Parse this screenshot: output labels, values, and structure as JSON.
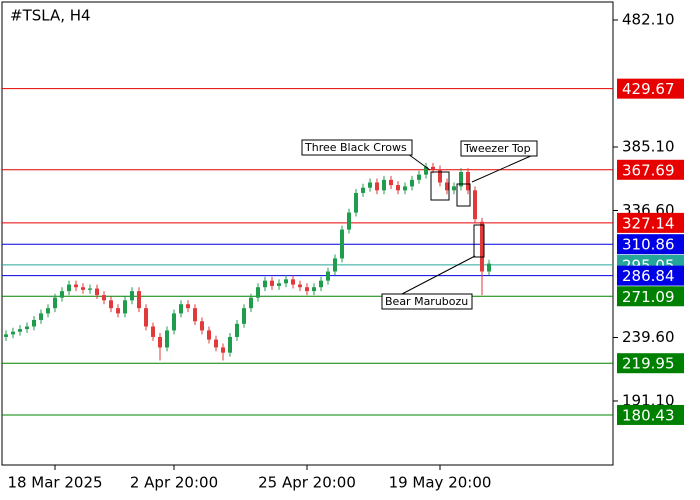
{
  "chart_data": {
    "type": "candlestick",
    "title": "#TSLA, H4",
    "ylim": [
      142.2,
      495.85
    ],
    "yticks": [
      {
        "value": 482.1,
        "label": "482.10"
      },
      {
        "value": 385.1,
        "label": "385.10"
      },
      {
        "value": 336.6,
        "label": "336.60"
      },
      {
        "value": 239.6,
        "label": "239.60"
      },
      {
        "value": 191.1,
        "label": "191.10"
      }
    ],
    "x_labels": [
      "18 Mar 2025",
      "2 Apr 20:00",
      "25 Apr 20:00",
      "19 May 20:00"
    ],
    "up_color": "#1f9d4c",
    "down_color": "#e23a3a",
    "open": [
      240,
      242,
      244,
      246,
      248,
      253,
      258,
      262,
      270,
      275,
      280,
      278,
      276,
      277,
      272,
      268,
      262,
      258,
      268,
      275,
      262,
      248,
      240,
      232,
      245,
      258,
      265,
      262,
      252,
      245,
      238,
      232,
      228,
      240,
      250,
      262,
      270,
      278,
      283,
      279,
      281,
      284,
      280,
      278,
      275,
      278,
      283,
      290,
      300,
      322,
      335,
      350,
      354,
      358,
      352,
      360,
      356,
      352,
      355,
      360,
      364,
      370,
      368,
      358,
      352,
      355,
      366,
      352,
      328,
      290
    ],
    "high": [
      245,
      247,
      249,
      251,
      256,
      261,
      265,
      273,
      278,
      283,
      283,
      281,
      280,
      280,
      275,
      271,
      265,
      271,
      278,
      278,
      265,
      251,
      243,
      248,
      261,
      268,
      268,
      265,
      255,
      248,
      241,
      235,
      243,
      253,
      265,
      273,
      281,
      286,
      286,
      284,
      287,
      287,
      283,
      281,
      281,
      286,
      293,
      303,
      325,
      338,
      353,
      357,
      361,
      361,
      363,
      363,
      359,
      358,
      363,
      367,
      373,
      373,
      371,
      361,
      358,
      369,
      369,
      355,
      331,
      299
    ],
    "low": [
      237,
      239,
      241,
      243,
      245,
      250,
      255,
      259,
      267,
      272,
      275,
      273,
      273,
      269,
      265,
      259,
      255,
      255,
      265,
      259,
      245,
      237,
      222,
      229,
      242,
      255,
      259,
      249,
      242,
      235,
      229,
      222,
      225,
      237,
      247,
      259,
      267,
      275,
      276,
      276,
      278,
      277,
      275,
      272,
      272,
      275,
      280,
      287,
      297,
      319,
      332,
      347,
      351,
      349,
      349,
      353,
      349,
      349,
      352,
      357,
      361,
      365,
      355,
      349,
      349,
      352,
      349,
      327,
      272,
      287
    ],
    "close": [
      242,
      244,
      246,
      248,
      253,
      258,
      262,
      270,
      275,
      280,
      278,
      276,
      277,
      272,
      268,
      262,
      258,
      268,
      275,
      262,
      248,
      240,
      232,
      245,
      258,
      265,
      262,
      252,
      245,
      238,
      232,
      228,
      240,
      250,
      262,
      270,
      278,
      283,
      279,
      281,
      284,
      280,
      278,
      275,
      278,
      283,
      290,
      300,
      322,
      335,
      350,
      354,
      358,
      352,
      360,
      356,
      352,
      355,
      360,
      364,
      370,
      368,
      358,
      352,
      355,
      366,
      352,
      330,
      290,
      296
    ],
    "levels": [
      {
        "value": 429.67,
        "color": "#e60000"
      },
      {
        "value": 367.69,
        "color": "#e60000"
      },
      {
        "value": 327.14,
        "color": "#e60000"
      },
      {
        "value": 310.86,
        "color": "#0000e6"
      },
      {
        "value": 295.05,
        "color": "#26a69a"
      },
      {
        "value": 286.84,
        "color": "#0000e6"
      },
      {
        "value": 271.09,
        "color": "#008000"
      },
      {
        "value": 219.95,
        "color": "#008000"
      },
      {
        "value": 180.43,
        "color": "#008000"
      }
    ],
    "annotations": [
      "Three Black Crows",
      "Tweezer Top",
      "Bear Marubozu"
    ]
  }
}
